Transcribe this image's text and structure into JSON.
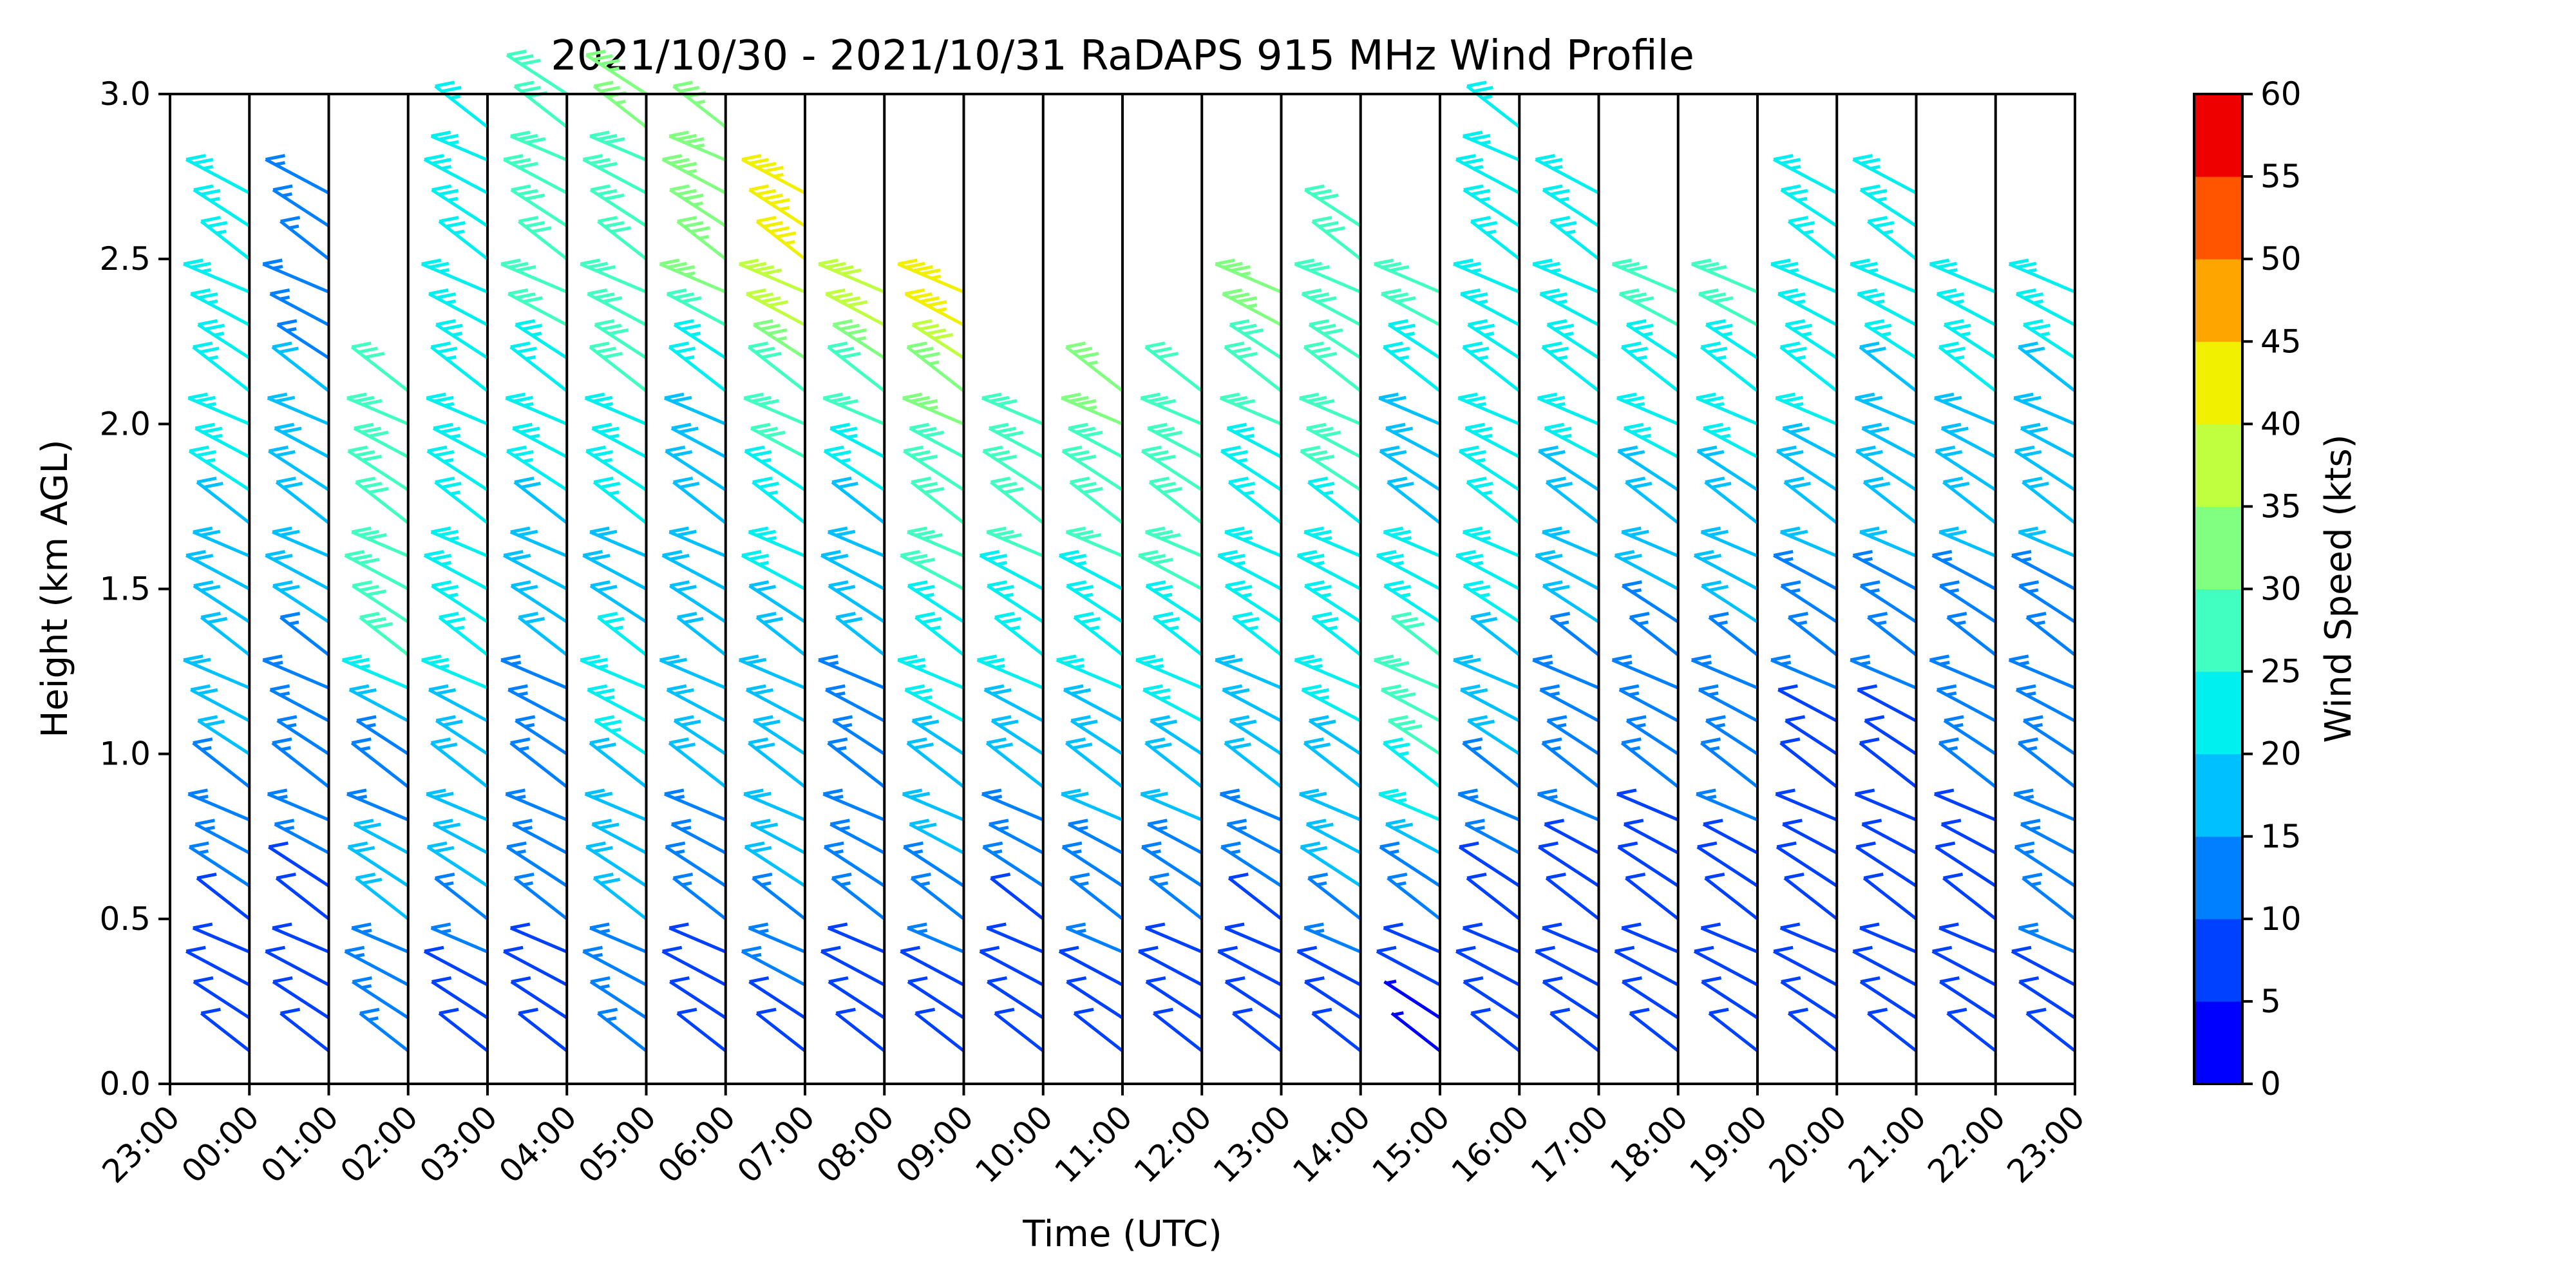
{
  "chart_data": {
    "type": "wind-barb-profile",
    "title": "2021/10/30 - 2021/10/31 RaDAPS 915 MHz Wind Profile",
    "xlabel": "Time (UTC)",
    "ylabel": "Height (km AGL)",
    "colorbar_label": "Wind Speed (kts)",
    "ylim": [
      0,
      3.0
    ],
    "yticks": [
      "0.0",
      "0.5",
      "1.0",
      "1.5",
      "2.0",
      "2.5",
      "3.0"
    ],
    "xticks": [
      "23:00",
      "00:00",
      "01:00",
      "02:00",
      "03:00",
      "04:00",
      "05:00",
      "06:00",
      "07:00",
      "08:00",
      "09:00",
      "10:00",
      "11:00",
      "12:00",
      "13:00",
      "14:00",
      "15:00",
      "16:00",
      "17:00",
      "18:00",
      "19:00",
      "20:00",
      "21:00",
      "22:00",
      "23:00"
    ],
    "colorbar": {
      "ticks": [
        "0",
        "5",
        "10",
        "15",
        "20",
        "25",
        "30",
        "35",
        "40",
        "45",
        "50",
        "55",
        "60"
      ],
      "colors": [
        "#00007f",
        "#0000ff",
        "#0040ff",
        "#0080ff",
        "#00c0ff",
        "#00f0f0",
        "#40ffc0",
        "#80ff80",
        "#c0ff40",
        "#f0f000",
        "#ffa500",
        "#ff5500",
        "#ee0000",
        "#7f0000"
      ]
    },
    "profile_range_km": [
      0.1,
      2.9
    ],
    "profiles": [
      {
        "time": "23:00",
        "top_km": 2.7,
        "speeds": [
          [
            0.2,
            12
          ],
          [
            0.6,
            15
          ],
          [
            1.1,
            23
          ],
          [
            1.6,
            24
          ],
          [
            2.0,
            26
          ],
          [
            2.5,
            28
          ]
        ]
      },
      {
        "time": "00:00",
        "top_km": 2.7,
        "speeds": [
          [
            0.2,
            12
          ],
          [
            0.8,
            16
          ],
          [
            1.4,
            20
          ],
          [
            2.0,
            21
          ],
          [
            2.5,
            18
          ]
        ]
      },
      {
        "time": "01:00",
        "top_km": 2.1,
        "speeds": [
          [
            0.2,
            15
          ],
          [
            0.5,
            22
          ],
          [
            1.0,
            18
          ],
          [
            1.3,
            30
          ],
          [
            2.0,
            32
          ]
        ]
      },
      {
        "time": "02:00",
        "top_km": 2.9,
        "speeds": [
          [
            0.2,
            12
          ],
          [
            0.7,
            22
          ],
          [
            1.3,
            26
          ],
          [
            1.8,
            28
          ],
          [
            2.3,
            30
          ],
          [
            2.8,
            28
          ]
        ]
      },
      {
        "time": "03:00",
        "top_km": 3.0,
        "speeds": [
          [
            0.2,
            14
          ],
          [
            0.8,
            16
          ],
          [
            1.3,
            20
          ],
          [
            1.8,
            25
          ],
          [
            2.3,
            30
          ],
          [
            2.8,
            30
          ]
        ]
      },
      {
        "time": "04:00",
        "top_km": 3.0,
        "speeds": [
          [
            0.2,
            16
          ],
          [
            0.6,
            22
          ],
          [
            1.1,
            26
          ],
          [
            1.6,
            24
          ],
          [
            2.1,
            30
          ],
          [
            2.6,
            32
          ],
          [
            2.9,
            35
          ]
        ]
      },
      {
        "time": "05:00",
        "top_km": 2.9,
        "speeds": [
          [
            0.2,
            12
          ],
          [
            0.6,
            16
          ],
          [
            1.0,
            22
          ],
          [
            1.5,
            20
          ],
          [
            2.0,
            24
          ],
          [
            2.4,
            35
          ],
          [
            2.8,
            38
          ]
        ]
      },
      {
        "time": "06:00",
        "top_km": 2.7,
        "speeds": [
          [
            0.2,
            14
          ],
          [
            0.6,
            20
          ],
          [
            1.2,
            24
          ],
          [
            1.7,
            26
          ],
          [
            2.1,
            34
          ],
          [
            2.5,
            48
          ]
        ]
      },
      {
        "time": "07:00",
        "top_km": 2.4,
        "speeds": [
          [
            0.2,
            12
          ],
          [
            0.6,
            16
          ],
          [
            1.0,
            18
          ],
          [
            1.5,
            22
          ],
          [
            1.9,
            26
          ],
          [
            2.3,
            42
          ]
        ]
      },
      {
        "time": "08:00",
        "top_km": 2.4,
        "speeds": [
          [
            0.2,
            12
          ],
          [
            0.5,
            18
          ],
          [
            1.0,
            24
          ],
          [
            1.5,
            30
          ],
          [
            2.0,
            35
          ],
          [
            2.3,
            48
          ]
        ]
      },
      {
        "time": "09:00",
        "top_km": 2.0,
        "speeds": [
          [
            0.2,
            10
          ],
          [
            0.6,
            16
          ],
          [
            1.1,
            24
          ],
          [
            1.6,
            30
          ],
          [
            2.0,
            30
          ]
        ]
      },
      {
        "time": "10:00",
        "top_km": 2.1,
        "speeds": [
          [
            0.2,
            12
          ],
          [
            0.6,
            18
          ],
          [
            1.1,
            24
          ],
          [
            1.6,
            30
          ],
          [
            2.0,
            36
          ]
        ]
      },
      {
        "time": "11:00",
        "top_km": 2.1,
        "speeds": [
          [
            0.2,
            10
          ],
          [
            0.6,
            18
          ],
          [
            1.1,
            26
          ],
          [
            1.6,
            32
          ],
          [
            2.0,
            30
          ]
        ]
      },
      {
        "time": "12:00",
        "top_km": 2.4,
        "speeds": [
          [
            0.2,
            10
          ],
          [
            0.6,
            16
          ],
          [
            1.1,
            24
          ],
          [
            1.6,
            28
          ],
          [
            2.0,
            30
          ],
          [
            2.3,
            36
          ]
        ]
      },
      {
        "time": "13:00",
        "top_km": 2.6,
        "speeds": [
          [
            0.2,
            10
          ],
          [
            0.6,
            20
          ],
          [
            1.1,
            26
          ],
          [
            1.6,
            28
          ],
          [
            2.0,
            32
          ],
          [
            2.5,
            30
          ]
        ]
      },
      {
        "time": "14:00",
        "top_km": 2.4,
        "speeds": [
          [
            0.2,
            8
          ],
          [
            0.5,
            16
          ],
          [
            0.9,
            30
          ],
          [
            1.4,
            30
          ],
          [
            1.9,
            20
          ],
          [
            2.3,
            30
          ]
        ]
      },
      {
        "time": "15:00",
        "top_km": 2.9,
        "speeds": [
          [
            0.2,
            10
          ],
          [
            0.6,
            14
          ],
          [
            1.1,
            22
          ],
          [
            1.6,
            28
          ],
          [
            2.1,
            28
          ],
          [
            2.6,
            28
          ]
        ]
      },
      {
        "time": "16:00",
        "top_km": 2.7,
        "speeds": [
          [
            0.2,
            10
          ],
          [
            0.6,
            14
          ],
          [
            1.1,
            18
          ],
          [
            1.6,
            22
          ],
          [
            2.1,
            28
          ],
          [
            2.6,
            26
          ]
        ]
      },
      {
        "time": "17:00",
        "top_km": 2.4,
        "speeds": [
          [
            0.2,
            12
          ],
          [
            0.6,
            14
          ],
          [
            1.1,
            16
          ],
          [
            1.6,
            22
          ],
          [
            2.0,
            26
          ],
          [
            2.3,
            30
          ]
        ]
      },
      {
        "time": "18:00",
        "top_km": 2.4,
        "speeds": [
          [
            0.2,
            12
          ],
          [
            0.6,
            14
          ],
          [
            1.1,
            18
          ],
          [
            1.6,
            22
          ],
          [
            2.0,
            26
          ],
          [
            2.3,
            30
          ]
        ]
      },
      {
        "time": "19:00",
        "top_km": 2.7,
        "speeds": [
          [
            0.2,
            12
          ],
          [
            0.6,
            14
          ],
          [
            1.1,
            14
          ],
          [
            1.6,
            20
          ],
          [
            2.0,
            26
          ],
          [
            2.6,
            28
          ]
        ]
      },
      {
        "time": "20:00",
        "top_km": 2.7,
        "speeds": [
          [
            0.2,
            12
          ],
          [
            0.6,
            14
          ],
          [
            1.1,
            14
          ],
          [
            1.6,
            20
          ],
          [
            2.0,
            24
          ],
          [
            2.6,
            28
          ]
        ]
      },
      {
        "time": "21:00",
        "top_km": 2.4,
        "speeds": [
          [
            0.2,
            14
          ],
          [
            0.6,
            14
          ],
          [
            1.1,
            16
          ],
          [
            1.6,
            20
          ],
          [
            2.0,
            24
          ],
          [
            2.3,
            28
          ]
        ]
      },
      {
        "time": "22:00",
        "top_km": 2.4,
        "speeds": [
          [
            0.2,
            14
          ],
          [
            0.6,
            16
          ],
          [
            1.1,
            16
          ],
          [
            1.6,
            20
          ],
          [
            2.0,
            22
          ],
          [
            2.3,
            28
          ]
        ]
      }
    ]
  }
}
